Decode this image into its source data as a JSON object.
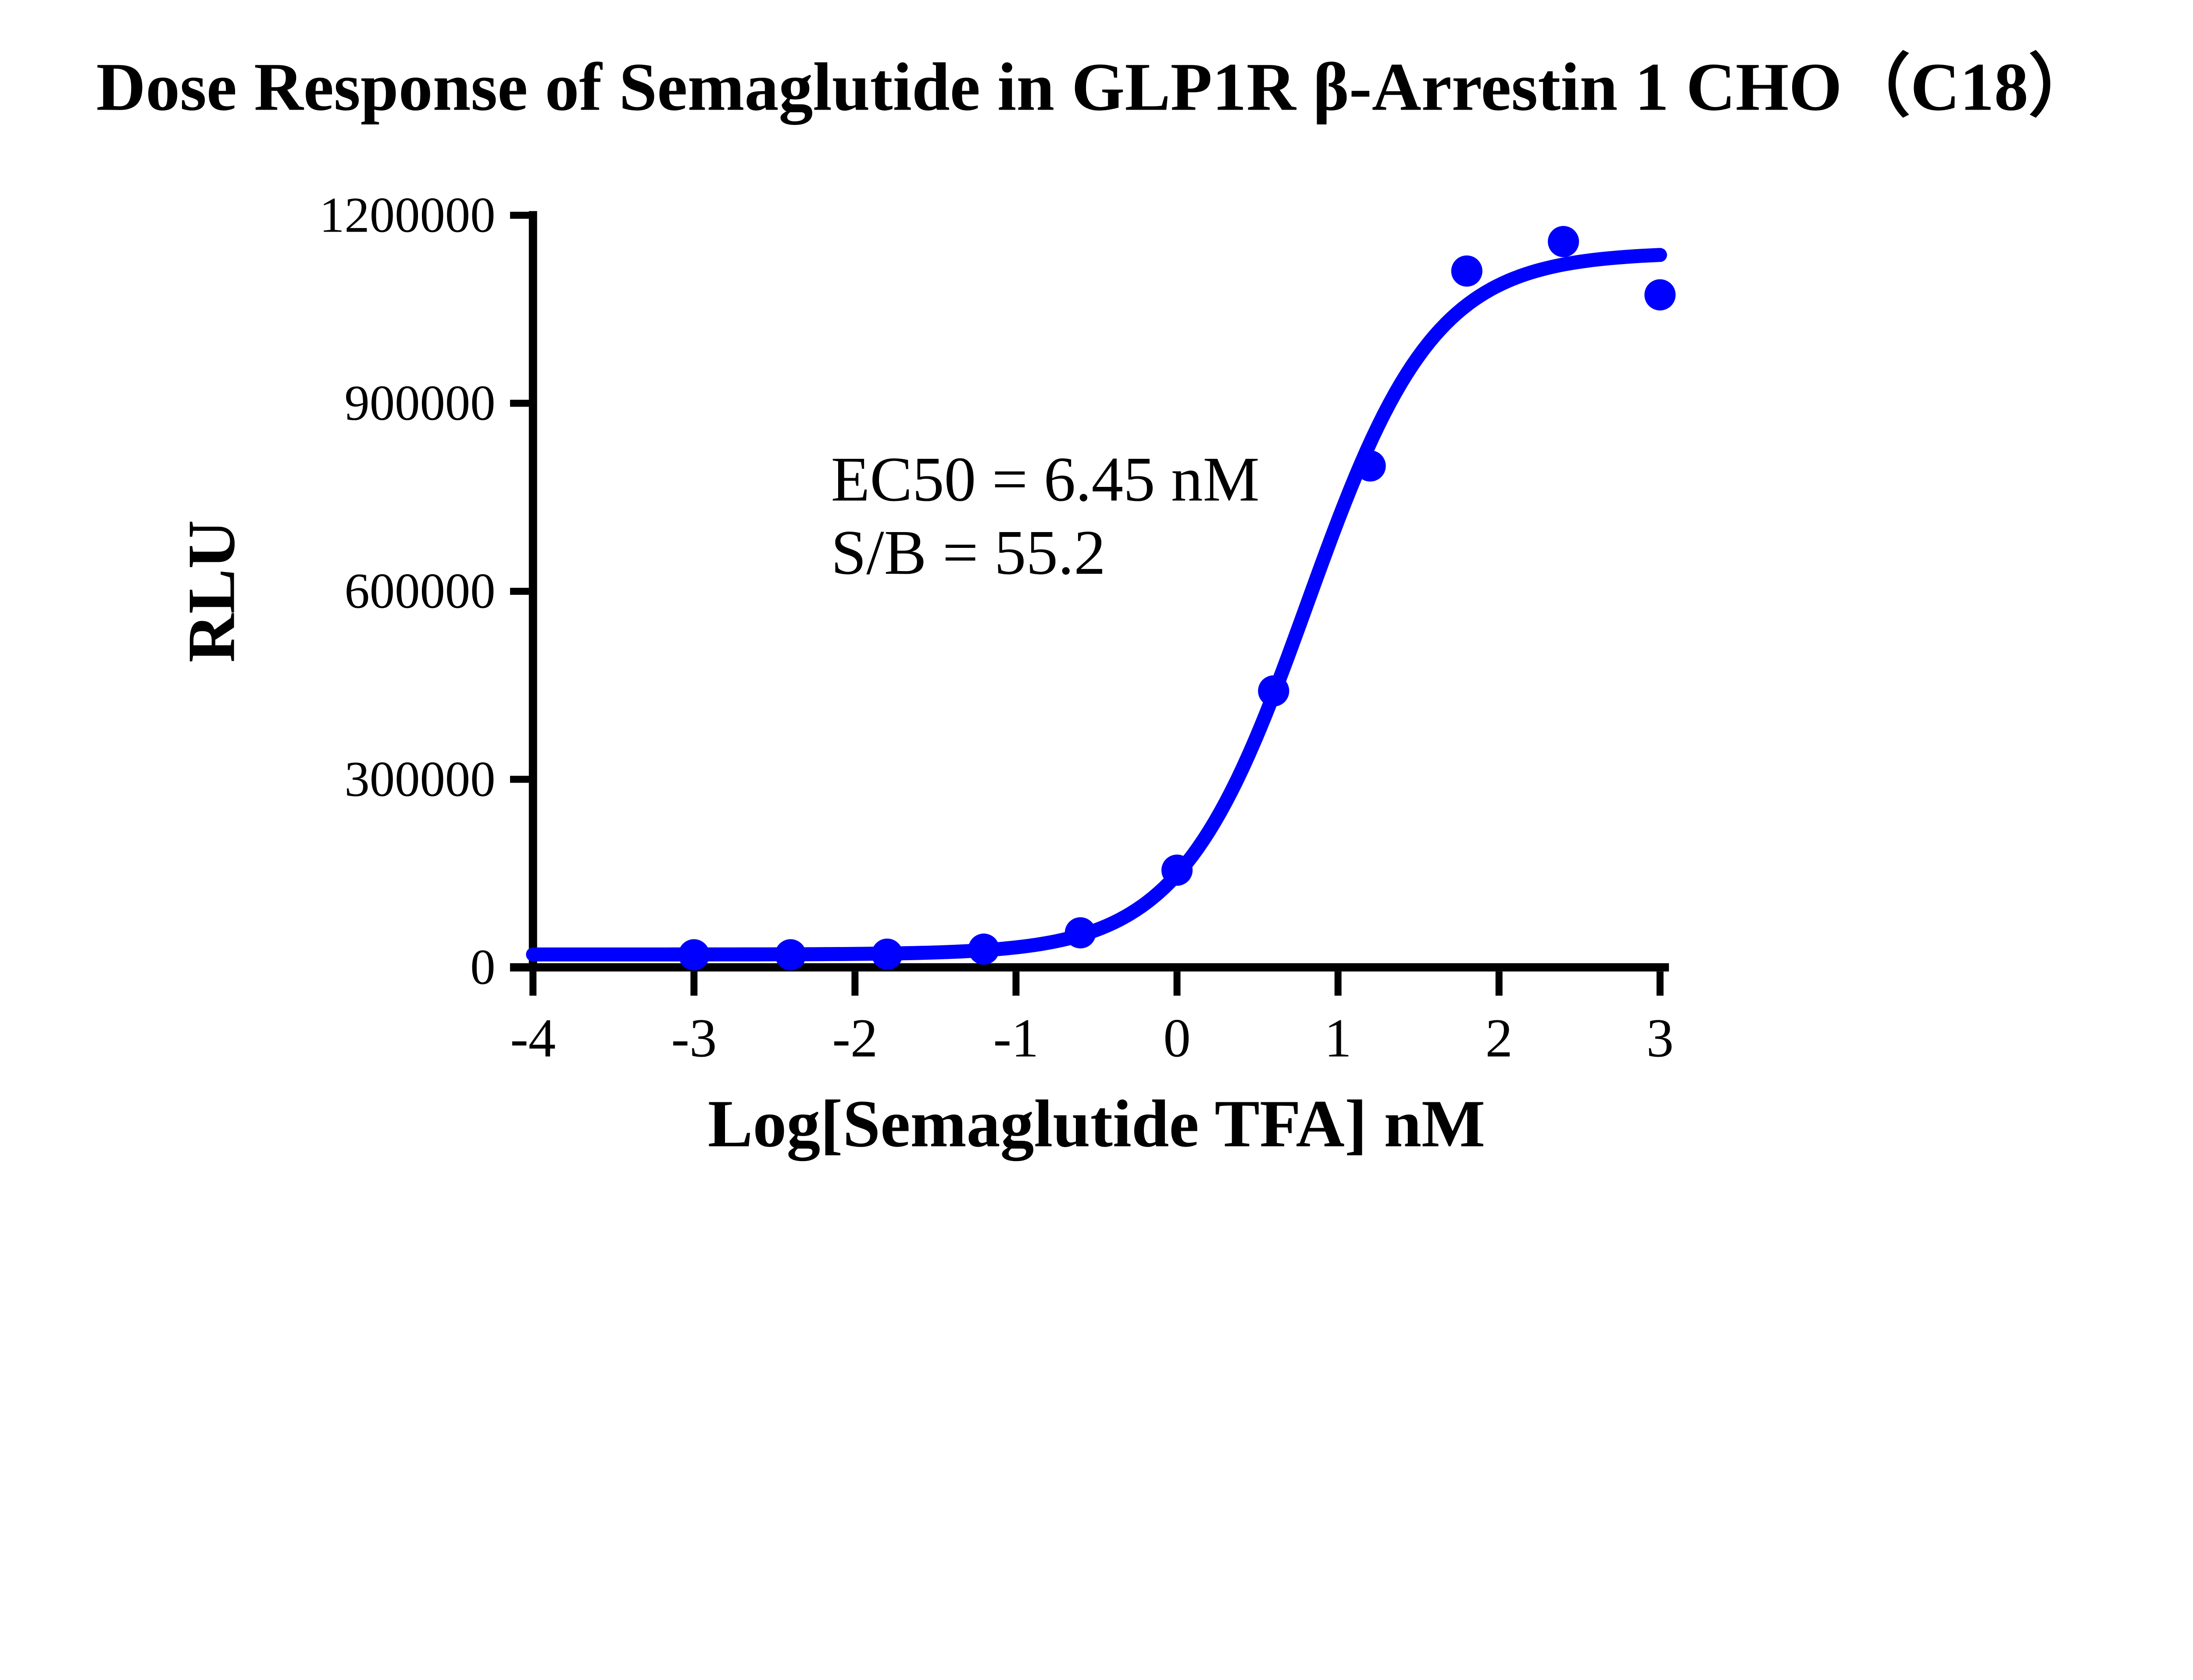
{
  "page": {
    "background_color": "#ffffff"
  },
  "chart_data": {
    "type": "scatter",
    "subtype": "dose-response-curve",
    "title": "Dose Response of Semaglutide in GLP1R β-Arrestin 1 CHO（C18）",
    "xlabel": "Log[Semaglutide TFA] nM",
    "ylabel": "RLU",
    "xlim": [
      -4,
      3
    ],
    "ylim": [
      0,
      1200000
    ],
    "x_ticks": [
      -4,
      -3,
      -2,
      -1,
      0,
      1,
      2,
      3
    ],
    "y_ticks": [
      0,
      300000,
      600000,
      900000,
      1200000
    ],
    "grid": false,
    "legend_position": "none",
    "colors": {
      "series": "#0000fe",
      "axis": "#000000",
      "text": "#000000"
    },
    "annotation": {
      "line1": "EC50 = 6.45 nM",
      "line2": "S/B = 55.2"
    },
    "series": [
      {
        "name": "Semaglutide TFA",
        "marker": "filled-circle",
        "x": [
          -3,
          -2.4,
          -1.8,
          -1.2,
          -0.6,
          0,
          0.6,
          1.2,
          1.8,
          2.4,
          3
        ],
        "y": [
          20000,
          20000,
          21000,
          29000,
          55000,
          155000,
          441000,
          800000,
          1111000,
          1158000,
          1073000
        ]
      }
    ],
    "fit_curve": {
      "model": "4PL-sigmoid",
      "bottom": 20500,
      "top": 1141000,
      "logEC50": 0.8096,
      "hill_slope": 1.1,
      "x_start": -4,
      "x_end": 3,
      "ec50_nM": 6.45,
      "signal_to_background": 55.2
    }
  }
}
